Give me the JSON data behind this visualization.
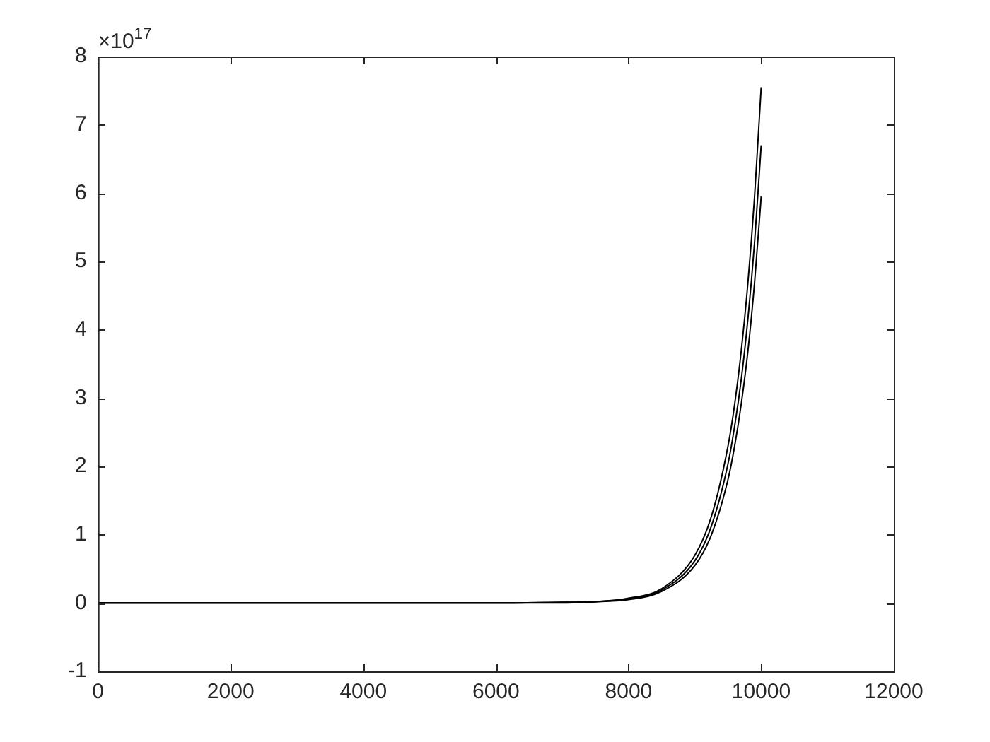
{
  "chart_data": {
    "type": "line",
    "x": [
      0,
      2000,
      4000,
      6000,
      7000,
      7500,
      8000,
      8500,
      9000,
      9250,
      9500,
      9600,
      9700,
      9800,
      9900,
      10000
    ],
    "series": [
      {
        "color": "#000000",
        "values": [
          0,
          0,
          0,
          0,
          0.01,
          0.02,
          0.07,
          0.21,
          0.7,
          1.27,
          2.3,
          2.91,
          3.7,
          4.69,
          5.95,
          7.55
        ]
      },
      {
        "color": "#000000",
        "values": [
          0,
          0,
          0,
          0,
          0.01,
          0.02,
          0.06,
          0.19,
          0.62,
          1.13,
          2.04,
          2.59,
          3.28,
          4.16,
          5.28,
          6.7
        ]
      },
      {
        "color": "#000000",
        "values": [
          0,
          0,
          0,
          0,
          0,
          0.02,
          0.05,
          0.17,
          0.55,
          1.0,
          1.81,
          2.3,
          2.92,
          3.69,
          4.69,
          5.95
        ]
      }
    ],
    "xlim": [
      0,
      12000
    ],
    "xticks": [
      0,
      2000,
      4000,
      6000,
      8000,
      10000,
      12000
    ],
    "ylim": [
      -1,
      8
    ],
    "yticks": [
      -1,
      0,
      1,
      2,
      3,
      4,
      5,
      6,
      7,
      8
    ],
    "annotations": [
      "×10$^{17}$"
    ],
    "grid": false,
    "legend": false,
    "marker": "none",
    "line_style": "solid"
  }
}
